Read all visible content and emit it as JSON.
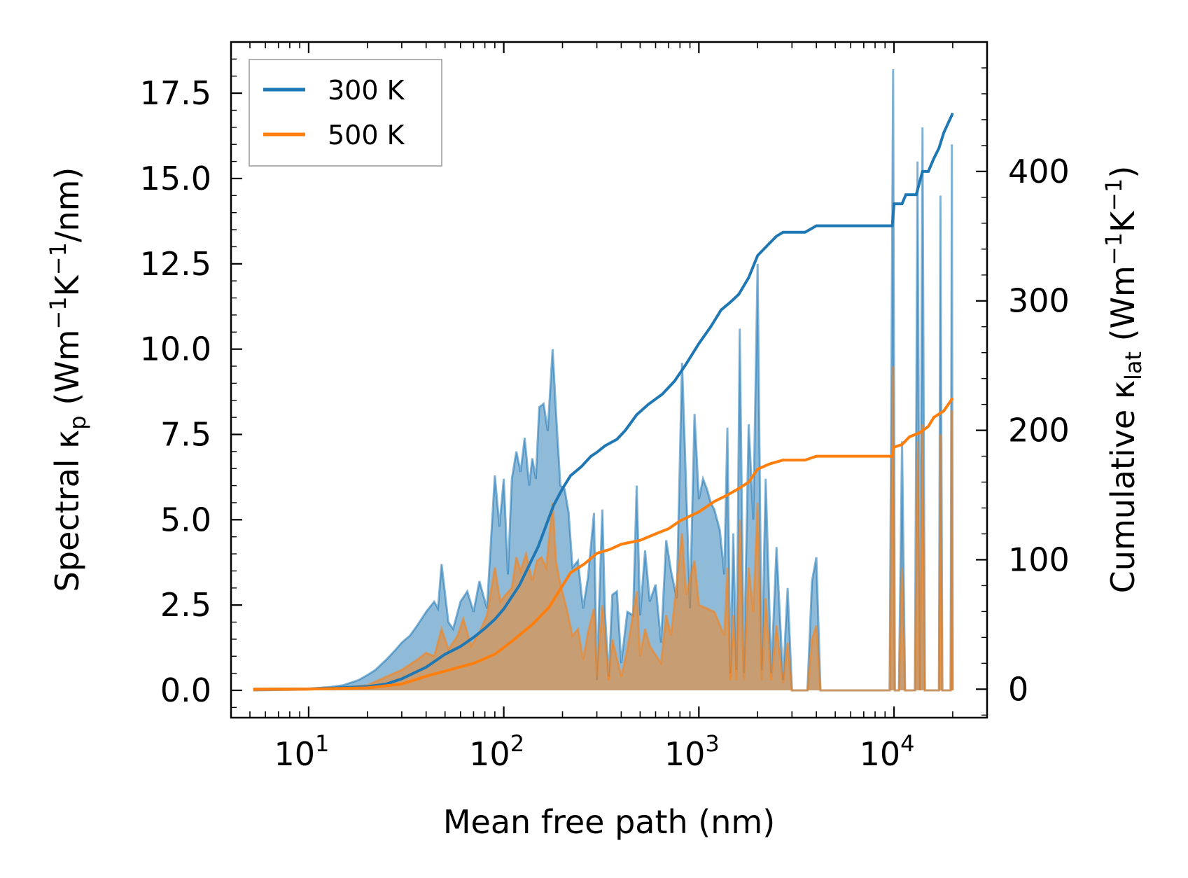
{
  "chart_data": {
    "type": "area",
    "xlabel": "Mean free path (nm)",
    "ylabel_left": "Spectral κp (Wm⁻¹K⁻¹/nm)",
    "ylabel_right": "Cumulative κlat (Wm⁻¹K⁻¹)",
    "xscale": "log",
    "xlim": [
      4,
      30000
    ],
    "ylim_left": [
      -0.8,
      19.0
    ],
    "ylim_right": [
      -22,
      500
    ],
    "x_ticks": [
      10,
      100,
      1000,
      10000
    ],
    "x_tick_labels": [
      "10",
      "10",
      "10",
      "10"
    ],
    "x_tick_exponents": [
      "1",
      "2",
      "3",
      "4"
    ],
    "y_left_ticks": [
      0.0,
      2.5,
      5.0,
      7.5,
      10.0,
      12.5,
      15.0,
      17.5
    ],
    "y_left_tick_labels": [
      "0.0",
      "2.5",
      "5.0",
      "7.5",
      "10.0",
      "12.5",
      "15.0",
      "17.5"
    ],
    "y_right_ticks": [
      0,
      100,
      200,
      300,
      400
    ],
    "y_right_tick_labels": [
      "0",
      "100",
      "200",
      "300",
      "400"
    ],
    "legend": {
      "position": "top-left",
      "entries": [
        "300 K",
        "500 K"
      ]
    },
    "series": [
      {
        "name": "300 K",
        "color": "#1f77b4",
        "spectral": [
          [
            5.2,
            0.0
          ],
          [
            8,
            0.02
          ],
          [
            10,
            0.05
          ],
          [
            13,
            0.1
          ],
          [
            15,
            0.15
          ],
          [
            18,
            0.3
          ],
          [
            20,
            0.45
          ],
          [
            22,
            0.6
          ],
          [
            25,
            0.9
          ],
          [
            28,
            1.2
          ],
          [
            30,
            1.4
          ],
          [
            33,
            1.6
          ],
          [
            36,
            1.9
          ],
          [
            40,
            2.3
          ],
          [
            44,
            2.6
          ],
          [
            46,
            2.4
          ],
          [
            48,
            3.7
          ],
          [
            52,
            2.0
          ],
          [
            55,
            1.8
          ],
          [
            60,
            2.6
          ],
          [
            65,
            2.9
          ],
          [
            70,
            2.3
          ],
          [
            75,
            3.2
          ],
          [
            82,
            2.4
          ],
          [
            90,
            6.3
          ],
          [
            95,
            4.8
          ],
          [
            100,
            6.2
          ],
          [
            105,
            3.4
          ],
          [
            110,
            6.2
          ],
          [
            116,
            7.0
          ],
          [
            122,
            6.4
          ],
          [
            128,
            7.4
          ],
          [
            135,
            6.0
          ],
          [
            140,
            6.8
          ],
          [
            146,
            6.2
          ],
          [
            152,
            8.3
          ],
          [
            160,
            8.4
          ],
          [
            168,
            7.6
          ],
          [
            178,
            10.0
          ],
          [
            185,
            8.2
          ],
          [
            195,
            6.0
          ],
          [
            205,
            5.9
          ],
          [
            215,
            5.2
          ],
          [
            225,
            3.6
          ],
          [
            240,
            3.8
          ],
          [
            255,
            2.4
          ],
          [
            270,
            3.3
          ],
          [
            290,
            5.2
          ],
          [
            300,
            0.3
          ],
          [
            310,
            3.0
          ],
          [
            320,
            5.3
          ],
          [
            330,
            2.3
          ],
          [
            345,
            0.4
          ],
          [
            360,
            2.8
          ],
          [
            380,
            2.9
          ],
          [
            400,
            0.8
          ],
          [
            430,
            2.3
          ],
          [
            460,
            2.2
          ],
          [
            480,
            6.0
          ],
          [
            500,
            2.2
          ],
          [
            530,
            4.1
          ],
          [
            560,
            2.6
          ],
          [
            600,
            3.1
          ],
          [
            640,
            1.4
          ],
          [
            680,
            4.4
          ],
          [
            720,
            3.5
          ],
          [
            770,
            2.7
          ],
          [
            820,
            9.6
          ],
          [
            860,
            6.0
          ],
          [
            900,
            2.4
          ],
          [
            950,
            8.1
          ],
          [
            1000,
            5.6
          ],
          [
            1050,
            6.2
          ],
          [
            1100,
            5.9
          ],
          [
            1150,
            5.5
          ],
          [
            1200,
            5.3
          ],
          [
            1280,
            4.7
          ],
          [
            1350,
            3.4
          ],
          [
            1400,
            7.7
          ],
          [
            1450,
            0.5
          ],
          [
            1500,
            4.6
          ],
          [
            1560,
            0.6
          ],
          [
            1620,
            10.6
          ],
          [
            1700,
            0.5
          ],
          [
            1800,
            7.8
          ],
          [
            1900,
            5.0
          ],
          [
            2000,
            12.5
          ],
          [
            2100,
            0.6
          ],
          [
            2200,
            6.2
          ],
          [
            2350,
            0.5
          ],
          [
            2500,
            4.2
          ],
          [
            2700,
            0.3
          ],
          [
            2850,
            3.0
          ],
          [
            3000,
            0.0
          ],
          [
            3600,
            0.0
          ],
          [
            3800,
            3.2
          ],
          [
            4000,
            3.9
          ],
          [
            4200,
            0.0
          ],
          [
            9500,
            0.0
          ],
          [
            9900,
            18.2
          ],
          [
            10100,
            0.0
          ],
          [
            10600,
            0.0
          ],
          [
            11000,
            7.3
          ],
          [
            11400,
            0.0
          ],
          [
            12800,
            0.0
          ],
          [
            13200,
            15.5
          ],
          [
            13600,
            0.0
          ],
          [
            14000,
            16.5
          ],
          [
            14400,
            0.0
          ],
          [
            17000,
            0.0
          ],
          [
            17300,
            14.5
          ],
          [
            17700,
            0.0
          ],
          [
            19500,
            0.0
          ],
          [
            19800,
            16.0
          ],
          [
            20000,
            0.0
          ]
        ],
        "cumulative": [
          [
            5.2,
            0.0
          ],
          [
            10,
            0.2
          ],
          [
            20,
            2.0
          ],
          [
            25,
            4.0
          ],
          [
            30,
            8.0
          ],
          [
            40,
            17.0
          ],
          [
            50,
            27.0
          ],
          [
            60,
            33.0
          ],
          [
            70,
            40.0
          ],
          [
            80,
            47.0
          ],
          [
            90,
            54.0
          ],
          [
            100,
            62.0
          ],
          [
            120,
            80.0
          ],
          [
            150,
            110.0
          ],
          [
            180,
            142.0
          ],
          [
            200,
            155.0
          ],
          [
            220,
            165.0
          ],
          [
            250,
            172.0
          ],
          [
            280,
            180.0
          ],
          [
            300,
            183.0
          ],
          [
            330,
            188.0
          ],
          [
            380,
            193.0
          ],
          [
            420,
            200.0
          ],
          [
            480,
            212.0
          ],
          [
            550,
            220.0
          ],
          [
            650,
            228.0
          ],
          [
            750,
            238.0
          ],
          [
            850,
            250.0
          ],
          [
            1000,
            267.0
          ],
          [
            1150,
            280.0
          ],
          [
            1300,
            293.0
          ],
          [
            1450,
            299.0
          ],
          [
            1600,
            305.0
          ],
          [
            1800,
            318.0
          ],
          [
            2000,
            335.0
          ],
          [
            2250,
            343.0
          ],
          [
            2500,
            350.0
          ],
          [
            2700,
            353.0
          ],
          [
            3000,
            353.0
          ],
          [
            3500,
            353.0
          ],
          [
            4000,
            358.0
          ],
          [
            9800,
            358.0
          ],
          [
            10000,
            375.0
          ],
          [
            11000,
            375.0
          ],
          [
            11500,
            382.0
          ],
          [
            13000,
            382.0
          ],
          [
            14000,
            400.0
          ],
          [
            15000,
            400.0
          ],
          [
            16000,
            410.0
          ],
          [
            17000,
            418.0
          ],
          [
            18000,
            430.0
          ],
          [
            20000,
            445.0
          ]
        ]
      },
      {
        "name": "500 K",
        "color": "#ff7f0e",
        "spectral": [
          [
            5.2,
            0.0
          ],
          [
            10,
            0.02
          ],
          [
            15,
            0.08
          ],
          [
            20,
            0.15
          ],
          [
            25,
            0.4
          ],
          [
            30,
            0.6
          ],
          [
            36,
            0.9
          ],
          [
            40,
            1.1
          ],
          [
            44,
            1.0
          ],
          [
            48,
            1.8
          ],
          [
            52,
            1.2
          ],
          [
            58,
            1.6
          ],
          [
            62,
            2.1
          ],
          [
            68,
            1.3
          ],
          [
            75,
            1.7
          ],
          [
            82,
            2.2
          ],
          [
            90,
            3.6
          ],
          [
            96,
            2.6
          ],
          [
            102,
            2.8
          ],
          [
            110,
            3.0
          ],
          [
            116,
            3.9
          ],
          [
            122,
            3.5
          ],
          [
            130,
            4.0
          ],
          [
            140,
            3.2
          ],
          [
            148,
            3.8
          ],
          [
            156,
            3.9
          ],
          [
            165,
            3.6
          ],
          [
            178,
            5.5
          ],
          [
            185,
            3.8
          ],
          [
            195,
            3.1
          ],
          [
            210,
            2.4
          ],
          [
            225,
            1.6
          ],
          [
            240,
            1.8
          ],
          [
            255,
            0.9
          ],
          [
            270,
            1.7
          ],
          [
            290,
            2.4
          ],
          [
            300,
            0.4
          ],
          [
            310,
            1.5
          ],
          [
            320,
            2.5
          ],
          [
            345,
            0.3
          ],
          [
            360,
            1.5
          ],
          [
            400,
            0.4
          ],
          [
            430,
            1.2
          ],
          [
            480,
            2.9
          ],
          [
            500,
            1.0
          ],
          [
            530,
            1.8
          ],
          [
            560,
            1.3
          ],
          [
            640,
            0.8
          ],
          [
            680,
            2.2
          ],
          [
            720,
            1.6
          ],
          [
            820,
            4.6
          ],
          [
            860,
            2.8
          ],
          [
            950,
            3.8
          ],
          [
            1000,
            2.5
          ],
          [
            1100,
            2.4
          ],
          [
            1200,
            2.3
          ],
          [
            1350,
            1.6
          ],
          [
            1400,
            3.6
          ],
          [
            1450,
            0.3
          ],
          [
            1500,
            2.2
          ],
          [
            1560,
            0.3
          ],
          [
            1620,
            5.0
          ],
          [
            1700,
            0.3
          ],
          [
            1800,
            3.6
          ],
          [
            1900,
            2.3
          ],
          [
            2000,
            5.5
          ],
          [
            2100,
            0.3
          ],
          [
            2200,
            2.7
          ],
          [
            2350,
            0.3
          ],
          [
            2500,
            1.9
          ],
          [
            2700,
            0.2
          ],
          [
            2850,
            1.4
          ],
          [
            3000,
            0.0
          ],
          [
            3600,
            0.0
          ],
          [
            3800,
            1.5
          ],
          [
            4000,
            1.9
          ],
          [
            4200,
            0.0
          ],
          [
            9500,
            0.0
          ],
          [
            9900,
            9.5
          ],
          [
            10100,
            0.0
          ],
          [
            10600,
            0.0
          ],
          [
            11000,
            3.6
          ],
          [
            11400,
            0.0
          ],
          [
            12800,
            0.0
          ],
          [
            13200,
            7.3
          ],
          [
            13600,
            0.0
          ],
          [
            14000,
            7.8
          ],
          [
            14400,
            0.0
          ],
          [
            17000,
            0.0
          ],
          [
            17300,
            7.5
          ],
          [
            17700,
            0.0
          ],
          [
            19500,
            0.0
          ],
          [
            19800,
            8.2
          ],
          [
            20000,
            0.0
          ]
        ],
        "cumulative": [
          [
            5.2,
            0.0
          ],
          [
            10,
            0.1
          ],
          [
            20,
            1.0
          ],
          [
            30,
            4.0
          ],
          [
            40,
            10.0
          ],
          [
            50,
            14.0
          ],
          [
            70,
            20.0
          ],
          [
            90,
            27.0
          ],
          [
            110,
            37.0
          ],
          [
            140,
            50.0
          ],
          [
            170,
            63.0
          ],
          [
            200,
            80.0
          ],
          [
            220,
            90.0
          ],
          [
            260,
            97.0
          ],
          [
            300,
            105.0
          ],
          [
            350,
            108.0
          ],
          [
            400,
            112.0
          ],
          [
            500,
            115.0
          ],
          [
            600,
            120.0
          ],
          [
            700,
            124.0
          ],
          [
            800,
            130.0
          ],
          [
            1000,
            137.0
          ],
          [
            1200,
            145.0
          ],
          [
            1400,
            150.0
          ],
          [
            1600,
            155.0
          ],
          [
            1800,
            160.0
          ],
          [
            2000,
            170.0
          ],
          [
            2300,
            174.0
          ],
          [
            2700,
            177.0
          ],
          [
            3000,
            177.0
          ],
          [
            3500,
            177.0
          ],
          [
            4000,
            180.0
          ],
          [
            9800,
            180.0
          ],
          [
            10000,
            187.0
          ],
          [
            11000,
            189.0
          ],
          [
            12000,
            195.0
          ],
          [
            13500,
            198.0
          ],
          [
            15000,
            203.0
          ],
          [
            16000,
            210.0
          ],
          [
            18000,
            215.0
          ],
          [
            20000,
            225.0
          ]
        ]
      }
    ]
  }
}
